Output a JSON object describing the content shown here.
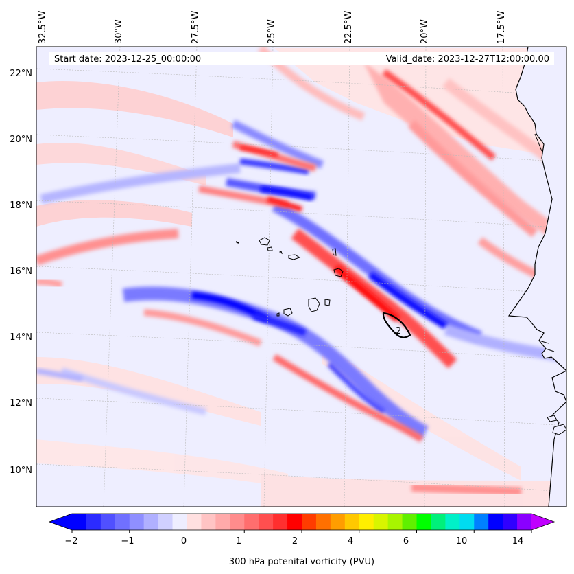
{
  "map": {
    "start_date_text": "Start date: 2023-12-25_00:00:00",
    "valid_date_text": "Valid_date: 2023-12-27T12:00:00.00",
    "longitude_labels": [
      "32.5°W",
      "30°W",
      "27.5°W",
      "25°W",
      "22.5°W",
      "20°W",
      "17.5°W"
    ],
    "latitude_labels": [
      "22°N",
      "20°N",
      "18°N",
      "16°N",
      "14°N",
      "12°N",
      "10°N"
    ],
    "contour_label": "2",
    "field": "300 hPa potential vorticity"
  },
  "colorbar": {
    "label": "300 hPa potenital vorticity (PVU)",
    "tick_labels": [
      "−2",
      "−1",
      "0",
      "1",
      "2",
      "4",
      "6",
      "10",
      "14"
    ],
    "colors": [
      "#0000ff",
      "#2b2bff",
      "#5050ff",
      "#7070ff",
      "#8f8fff",
      "#b0b0ff",
      "#d0d0ff",
      "#eeeeff",
      "#ffe0e0",
      "#ffc4c4",
      "#ffaaaa",
      "#ff8c8c",
      "#ff6e6e",
      "#ff4f4f",
      "#ff2f2f",
      "#ff0000",
      "#ff3c00",
      "#ff7000",
      "#ff9d00",
      "#ffc800",
      "#ffee00",
      "#d8f500",
      "#a8f500",
      "#60f000",
      "#00ff00",
      "#00f07a",
      "#00f0c8",
      "#00dcf0",
      "#0080ff",
      "#0000ff",
      "#3000ff",
      "#8a00ff"
    ],
    "under_color": "#0000ff",
    "over_color": "#c000ff"
  },
  "colors": {
    "background_field": "#eeeeff",
    "coastline": "#000000",
    "gridline": "#b8b8b8"
  }
}
